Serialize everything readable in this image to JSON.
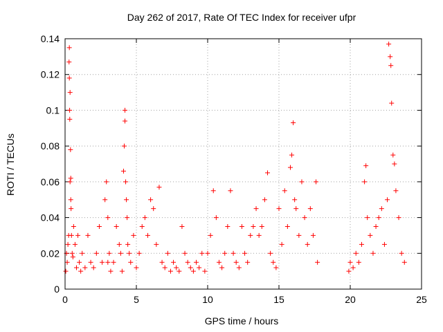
{
  "chart_data": {
    "type": "scatter",
    "title": "Day 262 of 2017, Rate Of TEC Index for receiver ufpr",
    "xlabel": "GPS time / hours",
    "ylabel": "ROTI / TECUs",
    "xlim": [
      0,
      25
    ],
    "ylim": [
      0,
      0.14
    ],
    "xticks": [
      0,
      5,
      10,
      15,
      20,
      25
    ],
    "yticks": [
      0,
      0.02,
      0.04,
      0.06,
      0.08,
      0.1,
      0.12,
      0.14
    ],
    "xtick_labels": [
      "0",
      "5",
      "10",
      "15",
      "20",
      "25"
    ],
    "ytick_labels": [
      "0",
      "0.02",
      "0.04",
      "0.06",
      "0.08",
      "0.1",
      "0.12",
      "0.14"
    ],
    "grid": true,
    "marker": "+",
    "color": "#ff0000",
    "series": [
      {
        "x": [
          0.05,
          0.1,
          0.15,
          0.2,
          0.25,
          0.28,
          0.3,
          0.3,
          0.32,
          0.33,
          0.35,
          0.35,
          0.38,
          0.4,
          0.4,
          0.42,
          0.45,
          0.5,
          0.55,
          0.6,
          0.7,
          0.8,
          0.9,
          1.0,
          1.1,
          1.2,
          1.4,
          1.6,
          1.8,
          2.0,
          2.2,
          2.4,
          2.6,
          2.8,
          2.9,
          3.0,
          3.0,
          3.1,
          3.2,
          3.4,
          3.6,
          3.8,
          3.9,
          4.0,
          4.1,
          4.15,
          4.2,
          4.2,
          4.25,
          4.3,
          4.35,
          4.4,
          4.5,
          4.6,
          4.8,
          5.0,
          5.2,
          5.4,
          5.6,
          5.8,
          6.0,
          6.2,
          6.4,
          6.6,
          6.8,
          7.0,
          7.2,
          7.4,
          7.6,
          7.8,
          8.0,
          8.2,
          8.4,
          8.6,
          8.8,
          9.0,
          9.2,
          9.4,
          9.6,
          9.8,
          10.0,
          10.2,
          10.4,
          10.6,
          10.8,
          11.0,
          11.2,
          11.4,
          11.6,
          11.8,
          12.0,
          12.2,
          12.4,
          12.6,
          12.8,
          13.0,
          13.2,
          13.4,
          13.6,
          13.8,
          14.0,
          14.2,
          14.4,
          14.6,
          14.8,
          15.0,
          15.2,
          15.4,
          15.6,
          15.8,
          15.9,
          16.0,
          16.1,
          16.2,
          16.4,
          16.6,
          16.8,
          17.0,
          17.2,
          17.4,
          17.6,
          17.7,
          19.9,
          20.0,
          20.2,
          20.4,
          20.6,
          20.8,
          21.0,
          21.1,
          21.2,
          21.4,
          21.6,
          21.8,
          22.0,
          22.2,
          22.4,
          22.6,
          22.7,
          22.8,
          22.85,
          22.9,
          23.0,
          23.1,
          23.2,
          23.4,
          23.6,
          23.8
        ],
        "y": [
          0.01,
          0.02,
          0.015,
          0.025,
          0.03,
          0.127,
          0.118,
          0.135,
          0.1,
          0.095,
          0.11,
          0.06,
          0.078,
          0.062,
          0.05,
          0.045,
          0.03,
          0.02,
          0.018,
          0.035,
          0.025,
          0.012,
          0.03,
          0.015,
          0.01,
          0.02,
          0.012,
          0.03,
          0.015,
          0.012,
          0.02,
          0.035,
          0.015,
          0.05,
          0.06,
          0.04,
          0.015,
          0.02,
          0.01,
          0.015,
          0.035,
          0.025,
          0.02,
          0.01,
          0.066,
          0.08,
          0.1,
          0.094,
          0.06,
          0.05,
          0.04,
          0.025,
          0.02,
          0.015,
          0.03,
          0.012,
          0.02,
          0.035,
          0.04,
          0.03,
          0.05,
          0.045,
          0.025,
          0.057,
          0.015,
          0.012,
          0.02,
          0.01,
          0.015,
          0.012,
          0.01,
          0.035,
          0.02,
          0.015,
          0.012,
          0.01,
          0.015,
          0.012,
          0.02,
          0.01,
          0.02,
          0.03,
          0.055,
          0.04,
          0.015,
          0.012,
          0.02,
          0.035,
          0.055,
          0.02,
          0.015,
          0.012,
          0.035,
          0.02,
          0.015,
          0.03,
          0.035,
          0.045,
          0.03,
          0.035,
          0.05,
          0.065,
          0.02,
          0.015,
          0.012,
          0.045,
          0.025,
          0.055,
          0.035,
          0.068,
          0.075,
          0.093,
          0.05,
          0.045,
          0.03,
          0.06,
          0.04,
          0.025,
          0.045,
          0.03,
          0.06,
          0.015,
          0.01,
          0.015,
          0.012,
          0.02,
          0.015,
          0.025,
          0.06,
          0.069,
          0.04,
          0.03,
          0.02,
          0.035,
          0.04,
          0.045,
          0.025,
          0.05,
          0.137,
          0.13,
          0.125,
          0.104,
          0.075,
          0.07,
          0.055,
          0.04,
          0.02,
          0.015
        ]
      }
    ]
  }
}
